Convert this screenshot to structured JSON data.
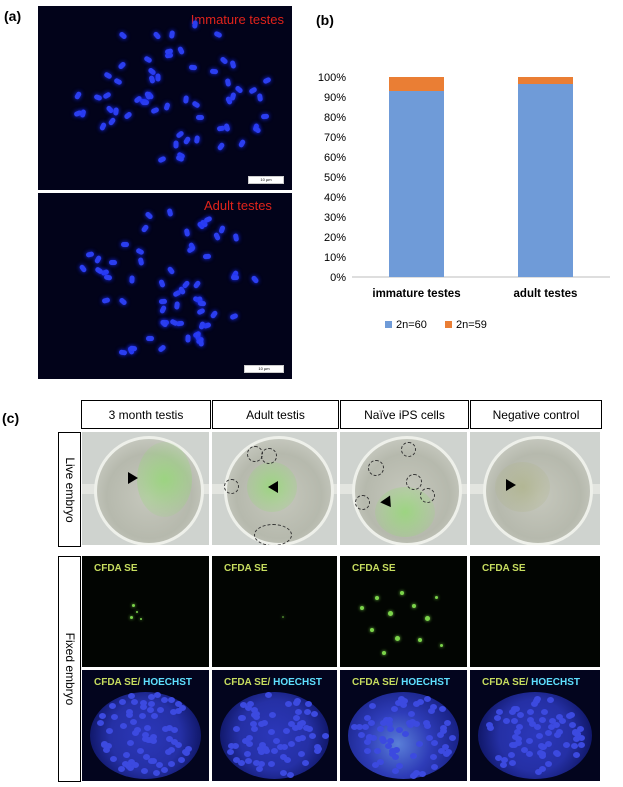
{
  "panel_a": {
    "letter": "(a)",
    "top_label": "Immature testes",
    "bottom_label": "Adult testes",
    "top_scale": "10 µm",
    "bottom_scale": "10 µm"
  },
  "panel_b": {
    "letter": "(b)"
  },
  "chart_data": {
    "type": "bar",
    "stacked": true,
    "categories": [
      "immature testes",
      "adult testes"
    ],
    "series": [
      {
        "name": "2n=60",
        "values": [
          93,
          96.5
        ],
        "color": "#6f9bd8"
      },
      {
        "name": "2n=59",
        "values": [
          7,
          3.5
        ],
        "color": "#ea7e34"
      }
    ],
    "yticks": [
      "0%",
      "10%",
      "20%",
      "30%",
      "40%",
      "50%",
      "60%",
      "70%",
      "80%",
      "90%",
      "100%"
    ],
    "ylim": [
      0,
      100
    ],
    "legend_position": "bottom"
  },
  "panel_c": {
    "letter": "(c)",
    "columns": [
      "3 month testis",
      "Adult testis",
      "Naïve iPS cells",
      "Negative control"
    ],
    "row_live": "Live embryo",
    "row_fixed": "Fixed embryo",
    "cfda_label": "CFDA SE",
    "merge_label_a": "CFDA SE/",
    "merge_label_b": " HOECHST"
  }
}
